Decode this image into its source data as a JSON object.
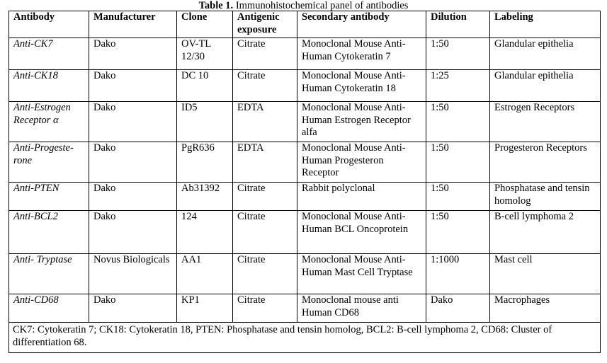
{
  "caption": {
    "label": "Table 1.",
    "text": " Immunohistochemical panel of antibodies"
  },
  "headers": {
    "antibody": "Antibody",
    "manufacturer": "Manufacturer",
    "clone": "Clone",
    "antigenic_exposure": "Antigenic exposure",
    "secondary": "Secondary antibody",
    "dilution": "Dilution",
    "labeling": "Labeling"
  },
  "rows": [
    {
      "antibody": "Anti-CK7",
      "manufacturer": "Dako",
      "clone": "OV-TL 12/30",
      "exposure": "Citrate",
      "secondary": "Monoclonal Mouse Anti-Human Cytokeratin 7",
      "dilution": "1:50",
      "labeling": "Glandular epithelia"
    },
    {
      "antibody": "Anti-CK18",
      "manufacturer": "Dako",
      "clone": "DC 10",
      "exposure": "Citrate",
      "secondary": "Monoclonal Mouse Anti-Human Cytokeratin 18",
      "dilution": "1:25",
      "labeling": "Glandular epithelia"
    },
    {
      "antibody": "Anti-Estrogen Receptor α",
      "manufacturer": "Dako",
      "clone": "ID5",
      "exposure": "EDTA",
      "secondary": "Monoclonal Mouse Anti-Human Estrogen Receptor alfa",
      "dilution": "1:50",
      "labeling": "Estrogen Receptors"
    },
    {
      "antibody": "Anti-Progeste-rone",
      "manufacturer": "Dako",
      "clone": "PgR636",
      "exposure": "EDTA",
      "secondary": "Monoclonal Mouse Anti-Human Progesteron Receptor",
      "dilution": "1:50",
      "labeling": "Progesteron Receptors"
    },
    {
      "antibody": "Anti-PTEN",
      "manufacturer": "Dako",
      "clone": "Ab31392",
      "exposure": "Citrate",
      "secondary": "Rabbit polyclonal",
      "dilution": "1:50",
      "labeling": "Phosphatase and tensin homolog"
    },
    {
      "antibody": "Anti-BCL2",
      "manufacturer": "Dako",
      "clone": "124",
      "exposure": "Citrate",
      "secondary": "Monoclonal Mouse Anti-Human BCL Oncoprotein",
      "dilution": "1:50",
      "labeling": "B-cell lymphoma 2"
    },
    {
      "antibody": "Anti- Tryptase",
      "manufacturer": "Novus Biologicals",
      "clone": "AA1",
      "exposure": "Citrate",
      "secondary": "Monoclonal Mouse Anti-Human Mast Cell Tryptase",
      "dilution": "1:1000",
      "labeling": "Mast cell"
    },
    {
      "antibody": "Anti-CD68",
      "manufacturer": "Dako",
      "clone": "KP1",
      "exposure": "Citrate",
      "secondary": "Monoclonal mouse anti Human CD68",
      "dilution": "Dako",
      "labeling": "Macrophages"
    }
  ],
  "footnote": "CK7: Cytokeratin 7; CK18: Cytokeratin 18, PTEN: Phosphatase and tensin homolog, BCL2: B-cell lymphoma 2, CD68: Cluster of differentiation 68."
}
